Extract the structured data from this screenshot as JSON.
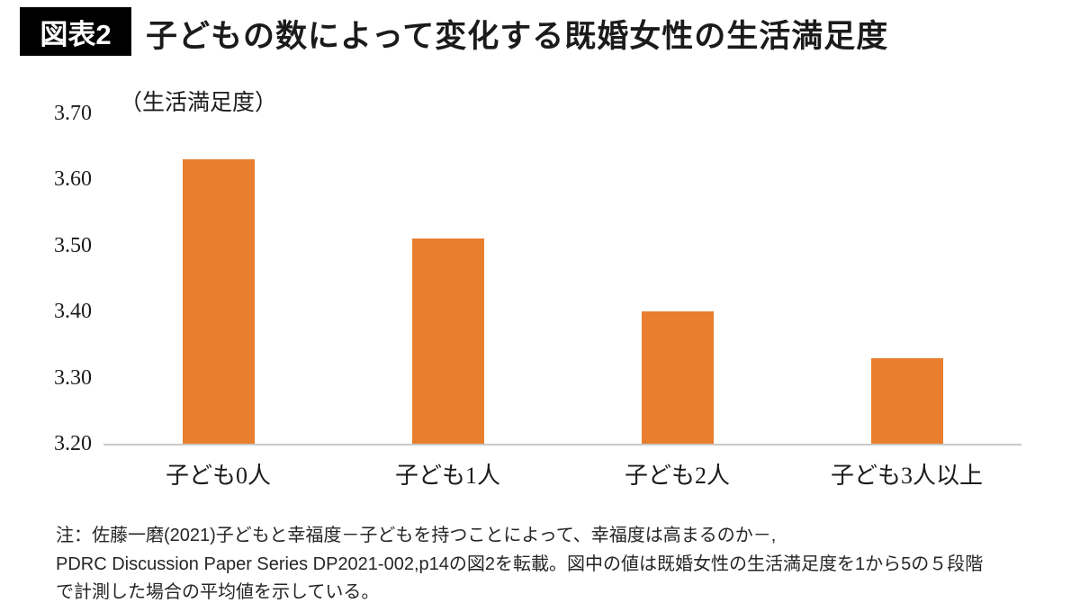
{
  "header": {
    "badge": "図表2",
    "title": "子どもの数によって変化する既婚女性の生活満足度"
  },
  "chart_data": {
    "type": "bar",
    "categories": [
      "子ども0人",
      "子ども1人",
      "子ども2人",
      "子ども3人以上"
    ],
    "values": [
      3.63,
      3.51,
      3.4,
      3.33
    ],
    "title": "子どもの数によって変化する既婚女性の生活満足度",
    "xlabel": "",
    "ylabel": "（生活満足度）",
    "ylim": [
      3.2,
      3.7
    ],
    "yticks": [
      "3.70",
      "3.60",
      "3.50",
      "3.40",
      "3.30",
      "3.20"
    ],
    "bar_color": "#e87e2e",
    "axis_line_color": "#c9c9c9",
    "grid": false,
    "legend": false
  },
  "note": {
    "line1": "注：佐藤一磨(2021)子どもと幸福度－子どもを持つことによって、幸福度は高まるのか－,",
    "line2": "PDRC Discussion Paper Series DP2021-002,p14の図2を転載。図中の値は既婚女性の生活満足度を1から5の５段階",
    "line3": "で計測した場合の平均値を示している。"
  }
}
